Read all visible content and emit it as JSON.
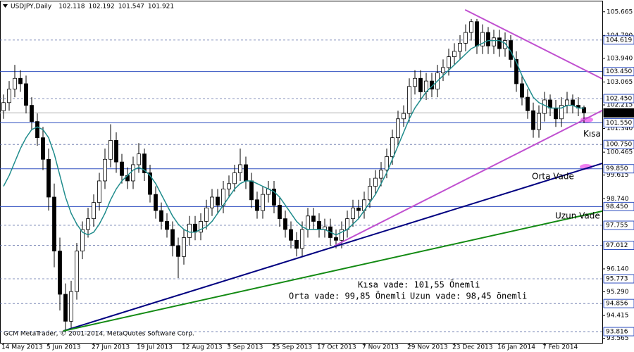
{
  "chart_data": {
    "type": "candlestick",
    "title": "USDJPY,Daily",
    "footer": "GCM MetaTrader, © 2001-2014, MetaQuotes Software Corp.",
    "categories": [
      "14 May 2013",
      null,
      null,
      null,
      null,
      null,
      null,
      null,
      "5 Jun 2013",
      null,
      null,
      null,
      null,
      null,
      null,
      null,
      "27 Jun 2013",
      null,
      null,
      null,
      null,
      null,
      null,
      null,
      "19 Jul 2013",
      null,
      null,
      null,
      null,
      null,
      null,
      null,
      "12 Aug 2013",
      null,
      null,
      null,
      null,
      null,
      null,
      null,
      "3 Sep 2013",
      null,
      null,
      null,
      null,
      null,
      null,
      null,
      "25 Sep 2013",
      null,
      null,
      null,
      null,
      null,
      null,
      null,
      "17 Oct 2013",
      null,
      null,
      null,
      null,
      null,
      null,
      null,
      "7 Nov 2013",
      null,
      null,
      null,
      null,
      null,
      null,
      null,
      "29 Nov 2013",
      null,
      null,
      null,
      null,
      null,
      null,
      null,
      "23 Dec 2013",
      null,
      null,
      null,
      null,
      null,
      null,
      null,
      "16 Jan 2014",
      null,
      null,
      null,
      null,
      null,
      null,
      null,
      "7 Feb 2014",
      null,
      null,
      null,
      null,
      null,
      null,
      null
    ],
    "open": [
      102.0,
      102.3,
      102.8,
      103.2,
      103.0,
      102.2,
      101.6,
      101.0,
      100.2,
      98.8,
      96.8,
      95.2,
      94.2,
      95.3,
      96.8,
      97.6,
      98.0,
      98.6,
      99.4,
      100.2,
      100.9,
      100.1,
      99.6,
      99.4,
      100.0,
      100.4,
      99.7,
      98.9,
      98.3,
      97.9,
      97.6,
      97.0,
      96.6,
      97.3,
      97.8,
      97.5,
      97.9,
      98.4,
      98.8,
      98.5,
      99.1,
      99.3,
      99.7,
      100.0,
      99.4,
      98.7,
      98.3,
      98.9,
      99.1,
      98.5,
      98.0,
      97.6,
      97.2,
      96.9,
      97.6,
      98.1,
      97.9,
      97.6,
      97.7,
      97.3,
      97.2,
      97.6,
      98.0,
      98.4,
      98.3,
      98.7,
      99.2,
      99.5,
      99.8,
      100.3,
      101.0,
      101.7,
      101.9,
      102.9,
      103.2,
      102.7,
      103.1,
      102.8,
      103.4,
      103.6,
      104.0,
      104.2,
      104.5,
      104.9,
      105.3,
      104.4,
      104.9,
      104.4,
      104.7,
      104.3,
      104.6,
      103.9,
      103.0,
      102.5,
      102.0,
      101.3,
      101.9,
      102.4,
      102.1,
      101.7,
      102.2,
      102.4,
      102.2,
      102.118
    ],
    "high": [
      102.6,
      103.1,
      103.7,
      103.5,
      103.3,
      102.5,
      101.9,
      101.4,
      100.6,
      99.3,
      97.3,
      95.6,
      95.7,
      97.1,
      97.9,
      98.4,
      98.9,
      99.7,
      100.6,
      101.5,
      101.2,
      100.4,
      99.9,
      100.3,
      100.8,
      100.6,
      100.0,
      99.2,
      98.6,
      98.2,
      97.9,
      97.3,
      97.6,
      98.1,
      98.1,
      98.2,
      98.7,
      99.1,
      99.1,
      99.4,
      99.6,
      100.0,
      100.6,
      100.3,
      99.7,
      99.0,
      99.2,
      99.4,
      99.4,
      98.8,
      98.3,
      97.9,
      97.5,
      97.9,
      98.4,
      98.4,
      98.2,
      98.0,
      98.0,
      97.6,
      97.9,
      98.3,
      98.7,
      98.7,
      99.0,
      99.5,
      99.8,
      100.1,
      100.6,
      101.3,
      102.0,
      102.2,
      103.2,
      103.5,
      103.5,
      103.4,
      103.4,
      103.7,
      103.9,
      104.3,
      104.5,
      104.8,
      105.2,
      105.4,
      105.4,
      105.2,
      105.1,
      105.0,
      105.0,
      104.9,
      104.8,
      104.2,
      103.3,
      102.8,
      102.3,
      102.2,
      102.7,
      102.6,
      102.4,
      102.5,
      102.7,
      102.6,
      102.5,
      102.192
    ],
    "low": [
      101.7,
      102.0,
      102.5,
      102.7,
      101.9,
      101.3,
      100.7,
      99.8,
      98.3,
      96.2,
      94.6,
      93.79,
      93.9,
      95.0,
      96.5,
      97.3,
      97.7,
      98.3,
      99.1,
      99.9,
      99.7,
      99.3,
      99.1,
      99.1,
      99.7,
      99.4,
      98.6,
      98.0,
      97.6,
      97.3,
      96.6,
      95.8,
      96.3,
      97.0,
      97.2,
      97.2,
      97.6,
      98.1,
      98.2,
      98.2,
      98.8,
      99.0,
      99.4,
      99.1,
      98.4,
      98.0,
      98.0,
      98.6,
      98.2,
      97.7,
      97.3,
      96.9,
      96.6,
      96.6,
      97.3,
      97.6,
      97.3,
      97.3,
      97.0,
      96.9,
      96.9,
      97.3,
      97.7,
      98.0,
      98.0,
      98.4,
      98.9,
      99.2,
      99.5,
      100.0,
      100.7,
      101.4,
      101.6,
      102.6,
      102.4,
      102.4,
      102.5,
      102.5,
      103.1,
      103.3,
      103.7,
      103.9,
      104.2,
      104.6,
      104.1,
      104.1,
      104.1,
      104.1,
      104.0,
      104.0,
      103.6,
      102.7,
      102.2,
      101.7,
      101.0,
      101.0,
      101.6,
      101.8,
      101.4,
      101.4,
      101.9,
      101.9,
      101.8,
      101.547
    ],
    "close": [
      102.3,
      102.8,
      103.2,
      103.0,
      102.2,
      101.6,
      101.0,
      100.2,
      98.8,
      96.8,
      95.2,
      94.2,
      95.3,
      96.8,
      97.6,
      98.0,
      98.6,
      99.4,
      100.2,
      100.9,
      100.1,
      99.6,
      99.4,
      100.0,
      100.4,
      99.7,
      98.9,
      98.3,
      97.9,
      97.6,
      97.0,
      96.6,
      97.3,
      97.8,
      97.5,
      97.9,
      98.4,
      98.8,
      98.5,
      99.1,
      99.3,
      99.7,
      100.0,
      99.4,
      98.7,
      98.3,
      98.9,
      99.1,
      98.5,
      98.0,
      97.6,
      97.2,
      96.9,
      97.6,
      98.1,
      97.9,
      97.6,
      97.7,
      97.3,
      97.2,
      97.6,
      98.0,
      98.4,
      98.3,
      98.7,
      99.2,
      99.5,
      99.8,
      100.3,
      101.0,
      101.7,
      101.9,
      102.9,
      103.2,
      102.7,
      103.1,
      102.8,
      103.4,
      103.6,
      104.0,
      104.2,
      104.5,
      104.9,
      105.3,
      104.4,
      104.9,
      104.4,
      104.7,
      104.3,
      104.6,
      103.9,
      103.0,
      102.5,
      102.0,
      101.3,
      101.9,
      102.4,
      102.1,
      101.7,
      102.2,
      102.4,
      102.2,
      102.1,
      101.921
    ],
    "ma": {
      "color": "#1f8c8c",
      "values": [
        99.2,
        99.6,
        100.1,
        100.6,
        101.0,
        101.3,
        101.4,
        101.3,
        101.0,
        100.4,
        99.6,
        98.8,
        98.2,
        97.8,
        97.5,
        97.4,
        97.5,
        97.8,
        98.2,
        98.7,
        99.1,
        99.4,
        99.6,
        99.8,
        99.9,
        99.8,
        99.6,
        99.3,
        98.9,
        98.5,
        98.1,
        97.8,
        97.6,
        97.5,
        97.5,
        97.6,
        97.7,
        97.9,
        98.2,
        98.5,
        98.8,
        99.1,
        99.3,
        99.4,
        99.4,
        99.3,
        99.2,
        99.1,
        99.0,
        98.8,
        98.5,
        98.2,
        97.9,
        97.7,
        97.6,
        97.6,
        97.6,
        97.6,
        97.5,
        97.4,
        97.5,
        97.6,
        97.8,
        98.0,
        98.3,
        98.6,
        98.9,
        99.3,
        99.7,
        100.2,
        100.7,
        101.2,
        101.7,
        102.1,
        102.4,
        102.7,
        102.9,
        103.1,
        103.3,
        103.5,
        103.7,
        103.9,
        104.1,
        104.3,
        104.4,
        104.5,
        104.6,
        104.6,
        104.6,
        104.5,
        104.2,
        103.8,
        103.3,
        102.9,
        102.5,
        102.3,
        102.2,
        102.1,
        102.1,
        102.1,
        102.2,
        102.2,
        102.1,
        102.1
      ]
    },
    "ylim": [
      93.4,
      106.05
    ],
    "yticks": [
      {
        "value": 105.665,
        "label": "105.665"
      },
      {
        "value": 104.79,
        "label": "104.790"
      },
      {
        "value": 103.94,
        "label": "103.940"
      },
      {
        "value": 103.065,
        "label": "103.065"
      },
      {
        "value": 102.215,
        "label": "102.215"
      },
      {
        "value": 101.34,
        "label": "101.340"
      },
      {
        "value": 100.465,
        "label": "100.465"
      },
      {
        "value": 99.615,
        "label": "99.615"
      },
      {
        "value": 98.74,
        "label": "98.740"
      },
      {
        "value": 96.14,
        "label": "96.140"
      },
      {
        "value": 95.29,
        "label": "95.290"
      },
      {
        "value": 94.415,
        "label": "94.415"
      },
      {
        "value": 93.565,
        "label": "93.565"
      }
    ],
    "levels": [
      {
        "value": 104.619,
        "label": "104.619",
        "style": "dashed"
      },
      {
        "value": 103.45,
        "label": "103.450",
        "style": "solid"
      },
      {
        "value": 102.45,
        "label": "102.450",
        "style": "dashed"
      },
      {
        "value": 101.921,
        "label": "101.921",
        "style": "current"
      },
      {
        "value": 101.55,
        "label": "101.550",
        "style": "solid"
      },
      {
        "value": 100.75,
        "label": "100.750",
        "style": "dashed"
      },
      {
        "value": 99.85,
        "label": "99.850",
        "style": "solid"
      },
      {
        "value": 98.45,
        "label": "98.450",
        "style": "solid"
      },
      {
        "value": 97.755,
        "label": "97.755",
        "style": "dashed"
      },
      {
        "value": 97.012,
        "label": "97.012",
        "style": "dashed"
      },
      {
        "value": 95.773,
        "label": "95.773",
        "style": "dashed"
      },
      {
        "value": 94.856,
        "label": "94.856",
        "style": "dashed"
      },
      {
        "value": 93.816,
        "label": "93.816",
        "style": "dashed"
      }
    ],
    "trendlines": [
      {
        "x1": 81.9,
        "y1": 105.74,
        "x2": 106.25,
        "y2": 103.18,
        "color": "#c050d0"
      },
      {
        "x1": 58.75,
        "y1": 96.995,
        "x2": 106.25,
        "y2": 102.01,
        "color": "#c050d0",
        "label": "Kısa"
      },
      {
        "x1": 10.6,
        "y1": 93.84,
        "x2": 106.25,
        "y2": 100.05,
        "color": "#000080",
        "label": "Orta Vade"
      },
      {
        "x1": 10.6,
        "y1": 93.84,
        "x2": 106.25,
        "y2": 98.28,
        "color": "#138a13",
        "label": "Uzun Vade"
      }
    ],
    "annotations": [
      {
        "text": "Kısa vade: 101,55 Önemli",
        "color": "#138a13"
      },
      {
        "text": "Orta vade: 99,85 Önemli",
        "color": "#000080"
      },
      {
        "text": "Uzun vade: 98,45 önemli",
        "color": "#e01010"
      }
    ]
  }
}
